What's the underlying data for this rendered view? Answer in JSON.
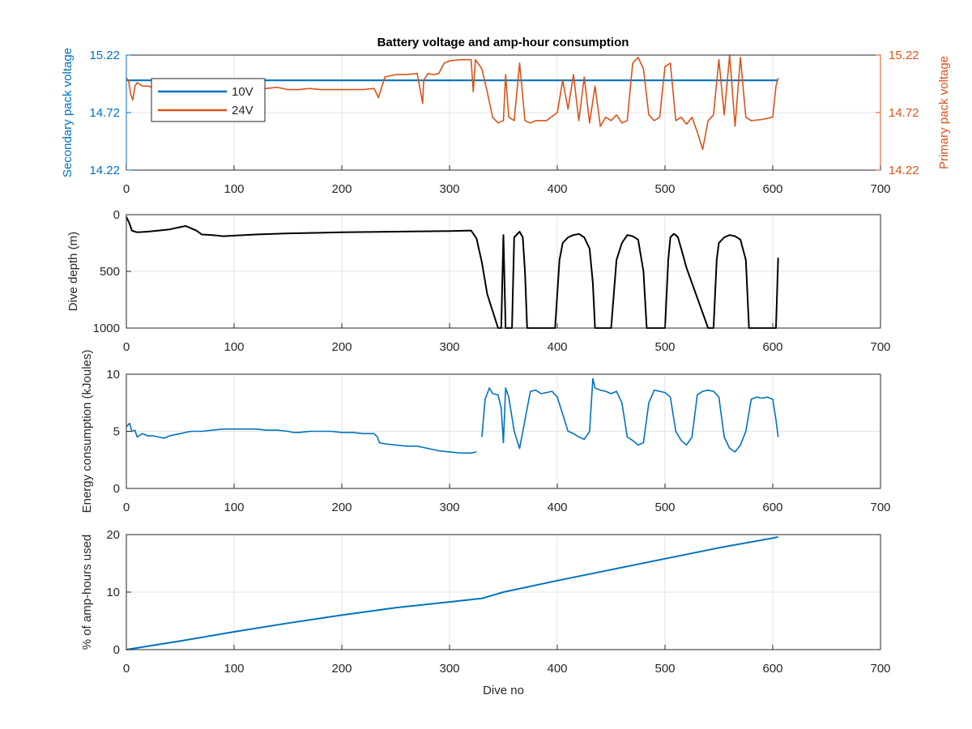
{
  "figure": {
    "title": "Battery voltage and amp-hour consumption",
    "xlabel": "Dive no",
    "legend": [
      "10V",
      "24V"
    ]
  },
  "colors": {
    "blue": "#0072BD",
    "orange": "#D95319",
    "black": "#000000",
    "grid": "#e3e3e3",
    "axis": "#262626"
  },
  "chart_data": [
    {
      "type": "line",
      "title": "Battery voltage and amp-hour consumption",
      "xlabel": "",
      "ylabel_left": "Secondary pack voltage",
      "ylabel_right": "Primary pack voltage",
      "xlim": [
        0,
        700
      ],
      "ylim_left": [
        14.22,
        15.22
      ],
      "ylim_right": [
        14.22,
        15.22
      ],
      "xticks": [
        "0",
        "100",
        "200",
        "300",
        "400",
        "500",
        "600",
        "700"
      ],
      "yticks_left": [
        "14.22",
        "14.72",
        "15.22"
      ],
      "yticks_right": [
        "14.22",
        "14.72",
        "15.22"
      ],
      "grid": true,
      "legend": "top-left",
      "series": [
        {
          "name": "10V",
          "axis": "left",
          "x": [
            0,
            605
          ],
          "y": [
            15.0,
            15.0
          ]
        },
        {
          "name": "24V",
          "axis": "right",
          "x": [
            0,
            2,
            4,
            6,
            8,
            10,
            15,
            20,
            25,
            30,
            40,
            50,
            60,
            70,
            80,
            90,
            100,
            110,
            120,
            130,
            140,
            150,
            160,
            170,
            180,
            190,
            200,
            210,
            220,
            230,
            234,
            240,
            250,
            260,
            270,
            275,
            276,
            280,
            285,
            290,
            295,
            300,
            310,
            320,
            322,
            324,
            330,
            335,
            340,
            345,
            350,
            352,
            355,
            360,
            365,
            370,
            375,
            380,
            390,
            400,
            405,
            410,
            415,
            420,
            425,
            430,
            435,
            440,
            445,
            450,
            455,
            460,
            465,
            470,
            475,
            480,
            485,
            490,
            495,
            500,
            505,
            510,
            515,
            520,
            525,
            530,
            535,
            540,
            545,
            550,
            555,
            560,
            565,
            570,
            575,
            580,
            590,
            600,
            603,
            605
          ],
          "y": [
            15.02,
            15.0,
            14.88,
            14.83,
            14.95,
            14.98,
            14.95,
            14.95,
            14.94,
            14.95,
            14.94,
            14.95,
            14.94,
            14.95,
            14.93,
            14.94,
            14.93,
            14.94,
            14.92,
            14.93,
            14.94,
            14.92,
            14.92,
            14.93,
            14.92,
            14.92,
            14.92,
            14.92,
            14.92,
            14.93,
            14.85,
            15.03,
            15.05,
            15.05,
            15.06,
            14.8,
            15.0,
            15.06,
            15.05,
            15.06,
            15.15,
            15.17,
            15.18,
            15.18,
            14.9,
            15.18,
            15.1,
            14.9,
            14.68,
            14.63,
            14.65,
            15.05,
            14.68,
            14.65,
            15.15,
            14.65,
            14.63,
            14.65,
            14.65,
            14.72,
            15.0,
            14.75,
            15.05,
            14.65,
            15.03,
            14.63,
            14.95,
            14.6,
            14.68,
            14.65,
            14.7,
            14.63,
            14.65,
            15.15,
            15.2,
            15.1,
            14.7,
            14.65,
            14.68,
            15.12,
            15.15,
            14.65,
            14.68,
            14.62,
            14.68,
            14.55,
            14.4,
            14.65,
            14.7,
            15.18,
            14.7,
            15.22,
            14.6,
            15.2,
            14.68,
            14.65,
            14.66,
            14.68,
            14.95,
            15.02
          ]
        }
      ]
    },
    {
      "type": "line",
      "title": "",
      "xlabel": "",
      "ylabel": "Dive depth (m)",
      "xlim": [
        0,
        700
      ],
      "ylim": [
        0,
        1000
      ],
      "y_reversed": true,
      "xticks": [
        "0",
        "100",
        "200",
        "300",
        "400",
        "500",
        "600",
        "700"
      ],
      "yticks": [
        "0",
        "500",
        "1000"
      ],
      "grid": true,
      "series": [
        {
          "x": [
            0,
            3,
            5,
            8,
            10,
            20,
            30,
            40,
            50,
            55,
            60,
            65,
            70,
            80,
            90,
            100,
            120,
            150,
            180,
            200,
            250,
            300,
            320,
            325,
            330,
            335,
            340,
            345,
            348,
            350,
            352,
            355,
            358,
            360,
            362,
            365,
            368,
            370,
            372,
            375,
            380,
            390,
            398,
            400,
            402,
            405,
            410,
            415,
            420,
            425,
            430,
            433,
            435,
            440,
            445,
            450,
            455,
            460,
            465,
            470,
            475,
            480,
            483,
            485,
            490,
            495,
            500,
            503,
            505,
            508,
            510,
            512,
            515,
            518,
            520,
            540,
            545,
            548,
            550,
            555,
            560,
            565,
            570,
            575,
            578,
            580,
            600,
            603,
            605
          ],
          "y": [
            20,
            80,
            140,
            150,
            155,
            150,
            140,
            130,
            110,
            100,
            120,
            140,
            175,
            180,
            190,
            185,
            175,
            165,
            160,
            155,
            150,
            145,
            140,
            210,
            420,
            700,
            850,
            1000,
            1000,
            180,
            1000,
            1000,
            1000,
            200,
            180,
            150,
            200,
            500,
            1000,
            1000,
            1000,
            1000,
            1000,
            700,
            400,
            250,
            200,
            180,
            170,
            200,
            300,
            600,
            1000,
            1000,
            1000,
            1000,
            400,
            250,
            180,
            190,
            220,
            500,
            1000,
            1000,
            1000,
            1000,
            1000,
            400,
            200,
            170,
            180,
            200,
            300,
            400,
            470,
            1000,
            1000,
            400,
            250,
            200,
            180,
            190,
            220,
            400,
            1000,
            1000,
            1000,
            1000,
            380
          ]
        }
      ]
    },
    {
      "type": "line",
      "title": "",
      "xlabel": "",
      "ylabel": "Energy consumption (kJoules)",
      "xlim": [
        0,
        700
      ],
      "ylim": [
        0,
        10
      ],
      "xticks": [
        "0",
        "100",
        "200",
        "300",
        "400",
        "500",
        "600",
        "700"
      ],
      "yticks": [
        "0",
        "5",
        "10"
      ],
      "grid": true,
      "series": [
        {
          "x": [
            0,
            3,
            5,
            8,
            10,
            15,
            20,
            25,
            30,
            35,
            40,
            45,
            50,
            55,
            60,
            70,
            80,
            90,
            100,
            110,
            120,
            130,
            140,
            150,
            155,
            160,
            170,
            180,
            190,
            200,
            210,
            220,
            230,
            233,
            235,
            240,
            250,
            260,
            270,
            280,
            290,
            300,
            310,
            320,
            325
          ],
          "y": [
            5.4,
            5.7,
            5.0,
            5.1,
            4.5,
            4.8,
            4.6,
            4.6,
            4.5,
            4.4,
            4.6,
            4.7,
            4.8,
            4.9,
            5.0,
            5.0,
            5.1,
            5.2,
            5.2,
            5.2,
            5.2,
            5.1,
            5.1,
            5.0,
            4.9,
            4.9,
            5.0,
            5.0,
            5.0,
            4.9,
            4.9,
            4.8,
            4.8,
            4.5,
            4.0,
            3.9,
            3.8,
            3.7,
            3.7,
            3.5,
            3.3,
            3.2,
            3.1,
            3.1,
            3.2
          ]
        },
        {
          "x": [
            330,
            333,
            337,
            340,
            345,
            348,
            350,
            352,
            355,
            360,
            365,
            370,
            375,
            380,
            385,
            390,
            395,
            400,
            405,
            410,
            415,
            420,
            425,
            430,
            433,
            435,
            440,
            445,
            450,
            455,
            460,
            465,
            470,
            475,
            480,
            485,
            490,
            495,
            500,
            505,
            510,
            515,
            520,
            525,
            530,
            535,
            540,
            545,
            550,
            555,
            560,
            565,
            570,
            575,
            580,
            585,
            590,
            595,
            600,
            603,
            605
          ],
          "y": [
            4.5,
            7.8,
            8.8,
            8.3,
            8.2,
            7.0,
            4.0,
            8.8,
            8.0,
            5.0,
            3.5,
            6.0,
            8.5,
            8.6,
            8.3,
            8.4,
            8.5,
            8.0,
            6.5,
            5.0,
            4.8,
            4.5,
            4.3,
            5.0,
            9.6,
            8.8,
            8.6,
            8.5,
            8.3,
            8.5,
            7.5,
            4.5,
            4.2,
            3.8,
            4.0,
            7.5,
            8.6,
            8.5,
            8.4,
            8.0,
            5.0,
            4.2,
            3.8,
            4.5,
            8.2,
            8.5,
            8.6,
            8.5,
            8.0,
            4.5,
            3.5,
            3.2,
            3.8,
            5.0,
            7.8,
            8.0,
            7.9,
            8.0,
            7.8,
            6.0,
            4.5
          ]
        }
      ]
    },
    {
      "type": "line",
      "title": "",
      "xlabel": "Dive no",
      "ylabel": "% of amp-hours used",
      "xlim": [
        0,
        700
      ],
      "ylim": [
        0,
        20
      ],
      "xticks": [
        "0",
        "100",
        "200",
        "300",
        "400",
        "500",
        "600",
        "700"
      ],
      "yticks": [
        "0",
        "10",
        "20"
      ],
      "grid": true,
      "series": [
        {
          "x": [
            0,
            50,
            100,
            150,
            200,
            250,
            300,
            330,
            350,
            400,
            450,
            500,
            550,
            600,
            605
          ],
          "y": [
            0,
            1.5,
            3.1,
            4.6,
            6.0,
            7.3,
            8.3,
            8.9,
            10.0,
            12.0,
            13.9,
            15.8,
            17.7,
            19.4,
            19.6
          ]
        }
      ]
    }
  ]
}
